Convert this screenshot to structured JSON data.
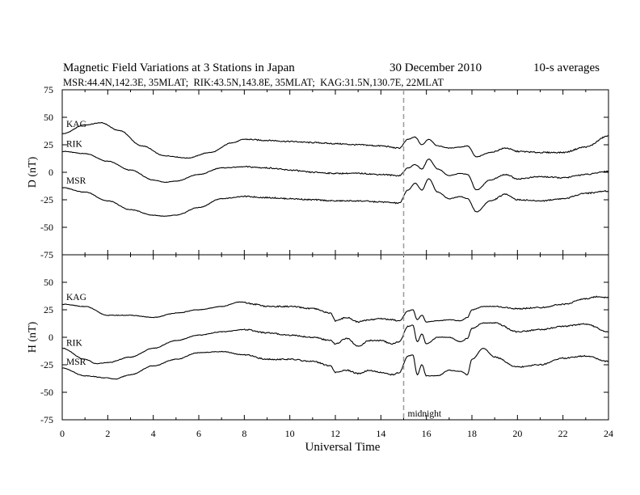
{
  "header": {
    "title": "Magnetic Field Variations at 3 Stations in Japan",
    "date": "30 December 2010",
    "averaging": "10-s averages",
    "stations_line": "MSR:44.4N,142.3E, 35MLAT;  RIK:43.5N,143.8E, 35MLAT;  KAG:31.5N,130.7E, 22MLAT"
  },
  "chart_data": {
    "type": "line",
    "xlabel": "Universal Time",
    "xlim": [
      0,
      24
    ],
    "x_ticks": [
      0,
      2,
      4,
      6,
      8,
      10,
      12,
      14,
      16,
      18,
      20,
      22,
      24
    ],
    "midnight_marker": {
      "x": 15,
      "label": "midnight"
    },
    "panels": [
      {
        "ylabel": "D (nT)",
        "ylim": [
          -75,
          75
        ],
        "y_ticks": [
          75,
          50,
          25,
          0,
          -25,
          -50,
          -75
        ],
        "series": [
          {
            "name": "KAG",
            "x": [
              0,
              1,
              1.7,
              2.5,
              3.5,
              4.5,
              5.5,
              6.5,
              7.5,
              8,
              9,
              10,
              11,
              12,
              13,
              14,
              14.8,
              15.2,
              15.5,
              15.8,
              16.1,
              16.5,
              17,
              17.5,
              17.8,
              18.2,
              18.8,
              19.5,
              20,
              21,
              22,
              23,
              24
            ],
            "y": [
              35,
              43,
              45,
              38,
              24,
              15,
              13,
              18,
              27,
              30,
              29,
              28,
              27,
              26,
              25,
              24,
              22,
              30,
              32,
              25,
              30,
              24,
              22,
              23,
              24,
              14,
              18,
              22,
              19,
              18,
              18,
              23,
              33
            ]
          },
          {
            "name": "RIK",
            "x": [
              0,
              1,
              2,
              3,
              4,
              4.5,
              5,
              6,
              7,
              8,
              9,
              10,
              11,
              12,
              13,
              14,
              14.8,
              15.2,
              15.5,
              15.8,
              16.1,
              16.5,
              17,
              17.5,
              17.8,
              18.2,
              18.8,
              19.5,
              20,
              21,
              22,
              23,
              24
            ],
            "y": [
              19,
              17,
              10,
              2,
              -7,
              -9,
              -8,
              -2,
              4,
              5,
              4,
              2,
              0,
              -1,
              -1,
              -2,
              -3,
              4,
              7,
              3,
              12,
              3,
              -3,
              -1,
              -2,
              -16,
              -7,
              -2,
              -6,
              -4,
              -5,
              -2,
              1
            ]
          },
          {
            "name": "MSR",
            "x": [
              0,
              1,
              2,
              3,
              4,
              4.5,
              5,
              6,
              7,
              8,
              9,
              10,
              11,
              12,
              13,
              14,
              14.8,
              15.2,
              15.5,
              15.8,
              16.1,
              16.5,
              17,
              17.5,
              17.8,
              18.2,
              18.8,
              19.5,
              20,
              21,
              22,
              23,
              24
            ],
            "y": [
              -14,
              -18,
              -26,
              -34,
              -39,
              -40,
              -39,
              -32,
              -24,
              -22,
              -23,
              -24,
              -25,
              -26,
              -26,
              -27,
              -28,
              -16,
              -10,
              -16,
              -6,
              -18,
              -24,
              -22,
              -24,
              -36,
              -26,
              -20,
              -25,
              -26,
              -24,
              -19,
              -17
            ]
          }
        ]
      },
      {
        "ylabel": "H (nT)",
        "ylim": [
          -75,
          75
        ],
        "y_ticks": [
          75,
          50,
          25,
          0,
          -25,
          -50,
          -75
        ],
        "series": [
          {
            "name": "KAG",
            "x": [
              0,
              1,
              2,
              3,
              4,
              5,
              6,
              7,
              7.8,
              8.5,
              9,
              10,
              11,
              11.8,
              12,
              12.5,
              13,
              13.5,
              14,
              14.5,
              14.8,
              15.2,
              15.4,
              15.6,
              15.8,
              16,
              16.5,
              17,
              17.5,
              17.8,
              18,
              18.5,
              19,
              20,
              21,
              22,
              23,
              23.5,
              24
            ],
            "y": [
              30,
              28,
              20,
              20,
              18,
              22,
              25,
              28,
              32,
              30,
              28,
              28,
              26,
              22,
              15,
              18,
              14,
              16,
              17,
              16,
              15,
              24,
              25,
              16,
              20,
              14,
              15,
              16,
              15,
              18,
              25,
              28,
              28,
              26,
              27,
              30,
              35,
              37,
              36
            ]
          },
          {
            "name": "RIK",
            "x": [
              0,
              1,
              1.5,
              2,
              3,
              4,
              5,
              6,
              7,
              8,
              9,
              10,
              11,
              11.8,
              12,
              12.5,
              13,
              13.5,
              14,
              14.5,
              14.8,
              15.2,
              15.4,
              15.6,
              15.8,
              16,
              16.5,
              17,
              17.5,
              17.8,
              18,
              18.5,
              19,
              20,
              21,
              22,
              23,
              24
            ],
            "y": [
              -10,
              -20,
              -24,
              -23,
              -18,
              -10,
              -3,
              2,
              5,
              7,
              4,
              2,
              0,
              -3,
              -6,
              -1,
              -8,
              -3,
              -3,
              -6,
              -4,
              10,
              11,
              -4,
              3,
              -6,
              0,
              0,
              -4,
              -1,
              8,
              13,
              13,
              5,
              7,
              10,
              12,
              5
            ]
          },
          {
            "name": "MSR",
            "x": [
              0,
              1,
              2,
              2.3,
              3,
              4,
              5,
              6,
              7,
              8,
              9,
              10,
              11,
              11.8,
              12,
              12.5,
              13,
              13.5,
              14,
              14.5,
              14.8,
              15.2,
              15.4,
              15.6,
              15.8,
              16,
              16.5,
              17,
              17.5,
              17.8,
              18,
              18.5,
              19,
              20,
              21,
              22,
              23,
              24
            ],
            "y": [
              -28,
              -35,
              -37,
              -38,
              -34,
              -26,
              -20,
              -14,
              -13,
              -16,
              -20,
              -20,
              -22,
              -26,
              -32,
              -30,
              -33,
              -30,
              -32,
              -34,
              -32,
              -17,
              -16,
              -34,
              -25,
              -35,
              -35,
              -30,
              -31,
              -34,
              -20,
              -10,
              -18,
              -27,
              -25,
              -19,
              -17,
              -22
            ]
          }
        ]
      }
    ]
  }
}
